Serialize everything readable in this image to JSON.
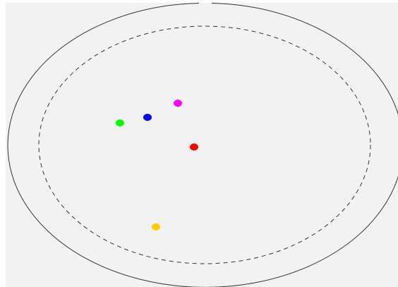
{
  "scene": {
    "background_color": "#f2f2f2",
    "page_color": "#ffffff",
    "outer_boundary": {
      "style": "solid",
      "color": "#333333",
      "has_gap_at_top": true
    },
    "inner_boundary": {
      "style": "dashed",
      "color": "#333333"
    },
    "tokens": [
      {
        "name": "magenta-dot",
        "color": "#ff00ff"
      },
      {
        "name": "blue-dot",
        "color": "#0000ff"
      },
      {
        "name": "green-dot",
        "color": "#00ff00"
      },
      {
        "name": "red-dot",
        "color": "#ff0000"
      },
      {
        "name": "yellow-dot",
        "color": "#ffcc00"
      }
    ]
  }
}
